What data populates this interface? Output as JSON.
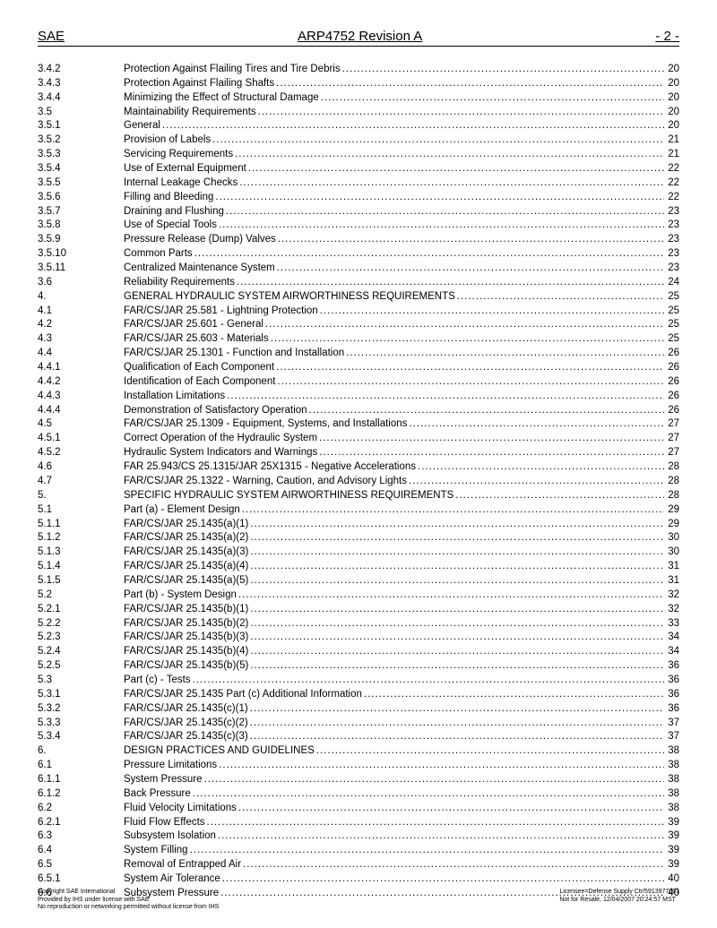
{
  "header": {
    "left": "SAE",
    "center": "ARP4752 Revision A",
    "right": "- 2 -"
  },
  "toc": [
    {
      "num": "3.4.2",
      "title": "Protection Against Flailing Tires and Tire Debris",
      "page": "20"
    },
    {
      "num": "3.4.3",
      "title": "Protection Against Flailing Shafts",
      "page": "20"
    },
    {
      "num": "3.4.4",
      "title": "Minimizing the Effect of Structural Damage",
      "page": "20"
    },
    {
      "num": "3.5",
      "title": "Maintainability Requirements",
      "page": "20"
    },
    {
      "num": "3.5.1",
      "title": "General",
      "page": "20"
    },
    {
      "num": "3.5.2",
      "title": "Provision of Labels",
      "page": "21"
    },
    {
      "num": "3.5.3",
      "title": "Servicing Requirements",
      "page": "21"
    },
    {
      "num": "3.5.4",
      "title": "Use of External Equipment",
      "page": "22"
    },
    {
      "num": "3.5.5",
      "title": "Internal Leakage Checks",
      "page": "22"
    },
    {
      "num": "3.5.6",
      "title": "Filling and Bleeding",
      "page": "22"
    },
    {
      "num": "3.5.7",
      "title": "Draining and Flushing",
      "page": "23"
    },
    {
      "num": "3.5.8",
      "title": "Use of Special Tools",
      "page": "23"
    },
    {
      "num": "3.5.9",
      "title": "Pressure Release (Dump) Valves",
      "page": "23"
    },
    {
      "num": "3.5.10",
      "title": "Common Parts",
      "page": "23"
    },
    {
      "num": "3.5.11",
      "title": "Centralized Maintenance System",
      "page": "23"
    },
    {
      "num": "3.6",
      "title": "Reliability Requirements",
      "page": "24"
    },
    {
      "num": "4.",
      "title": "GENERAL HYDRAULIC SYSTEM AIRWORTHINESS REQUIREMENTS",
      "page": "25"
    },
    {
      "num": "4.1",
      "title": "FAR/CS/JAR 25.581 - Lightning Protection",
      "page": "25"
    },
    {
      "num": "4.2",
      "title": "FAR/CS/JAR 25.601 - General",
      "page": "25"
    },
    {
      "num": "4.3",
      "title": "FAR/CS/JAR 25.603 - Materials",
      "page": "25"
    },
    {
      "num": "4.4",
      "title": "FAR/CS/JAR 25.1301 - Function and Installation",
      "page": "26"
    },
    {
      "num": "4.4.1",
      "title": "Qualification of Each Component",
      "page": "26"
    },
    {
      "num": "4.4.2",
      "title": "Identification of Each Component",
      "page": "26"
    },
    {
      "num": "4.4.3",
      "title": "Installation Limitations",
      "page": "26"
    },
    {
      "num": "4.4.4",
      "title": "Demonstration of Satisfactory Operation",
      "page": "26"
    },
    {
      "num": "4.5",
      "title": "FAR/CS/JAR 25.1309 - Equipment, Systems, and Installations",
      "page": "27"
    },
    {
      "num": "4.5.1",
      "title": "Correct Operation of the Hydraulic System",
      "page": "27"
    },
    {
      "num": "4.5.2",
      "title": "Hydraulic System Indicators and Warnings",
      "page": "27"
    },
    {
      "num": "4.6",
      "title": "FAR 25.943/CS 25.1315/JAR 25X1315 - Negative Accelerations",
      "page": "28"
    },
    {
      "num": "4.7",
      "title": "FAR/CS/JAR 25.1322 - Warning, Caution, and Advisory Lights",
      "page": "28"
    },
    {
      "num": "5.",
      "title": "SPECIFIC HYDRAULIC SYSTEM AIRWORTHINESS REQUIREMENTS",
      "page": "28"
    },
    {
      "num": "5.1",
      "title": "Part (a) - Element Design",
      "page": "29"
    },
    {
      "num": "5.1.1",
      "title": "FAR/CS/JAR 25.1435(a)(1)",
      "page": "29"
    },
    {
      "num": "5.1.2",
      "title": "FAR/CS/JAR 25.1435(a)(2)",
      "page": "30"
    },
    {
      "num": "5.1.3",
      "title": "FAR/CS/JAR 25.1435(a)(3)",
      "page": "30"
    },
    {
      "num": "5.1.4",
      "title": "FAR/CS/JAR 25.1435(a)(4)",
      "page": "31"
    },
    {
      "num": "5.1.5",
      "title": "FAR/CS/JAR 25.1435(a)(5)",
      "page": "31"
    },
    {
      "num": "5.2",
      "title": "Part (b) - System Design",
      "page": "32"
    },
    {
      "num": "5.2.1",
      "title": "FAR/CS/JAR 25.1435(b)(1)",
      "page": "32"
    },
    {
      "num": "5.2.2",
      "title": "FAR/CS/JAR 25.1435(b)(2)",
      "page": "33"
    },
    {
      "num": "5.2.3",
      "title": "FAR/CS/JAR 25.1435(b)(3)",
      "page": "34"
    },
    {
      "num": "5.2.4",
      "title": "FAR/CS/JAR 25.1435(b)(4)",
      "page": "34"
    },
    {
      "num": "5.2.5",
      "title": "FAR/CS/JAR 25.1435(b)(5)",
      "page": "36"
    },
    {
      "num": "5.3",
      "title": "Part (c) - Tests",
      "page": "36"
    },
    {
      "num": "5.3.1",
      "title": "FAR/CS/JAR 25.1435 Part (c) Additional Information",
      "page": "36"
    },
    {
      "num": "5.3.2",
      "title": "FAR/CS/JAR 25.1435(c)(1)",
      "page": "36"
    },
    {
      "num": "5.3.3",
      "title": "FAR/CS/JAR 25.1435(c)(2)",
      "page": "37"
    },
    {
      "num": "5.3.4",
      "title": "FAR/CS/JAR 25.1435(c)(3)",
      "page": "37"
    },
    {
      "num": "6.",
      "title": "DESIGN PRACTICES AND GUIDELINES",
      "page": "38"
    },
    {
      "num": "6.1",
      "title": "Pressure Limitations",
      "page": "38"
    },
    {
      "num": "6.1.1",
      "title": "System Pressure",
      "page": "38"
    },
    {
      "num": "6.1.2",
      "title": "Back Pressure",
      "page": "38"
    },
    {
      "num": "6.2",
      "title": "Fluid Velocity Limitations",
      "page": "38"
    },
    {
      "num": "6.2.1",
      "title": "Fluid Flow Effects",
      "page": "39"
    },
    {
      "num": "6.3",
      "title": "Subsystem Isolation",
      "page": "39"
    },
    {
      "num": "6.4",
      "title": "System Filling",
      "page": "39"
    },
    {
      "num": "6.5",
      "title": "Removal of Entrapped Air",
      "page": "39"
    },
    {
      "num": "6.5.1",
      "title": "System Air Tolerance",
      "page": "40"
    },
    {
      "num": "6.6",
      "title": "Subsystem Pressure",
      "page": "40"
    }
  ],
  "footer": {
    "left": [
      "Copyright SAE International",
      "Provided by IHS under license with SAE",
      "No reproduction or networking permitted without license from IHS"
    ],
    "right": [
      "Licensee=Defense Supply Ctr/5913977001",
      "Not for Resale, 12/04/2007 20:24:57 MST"
    ]
  }
}
